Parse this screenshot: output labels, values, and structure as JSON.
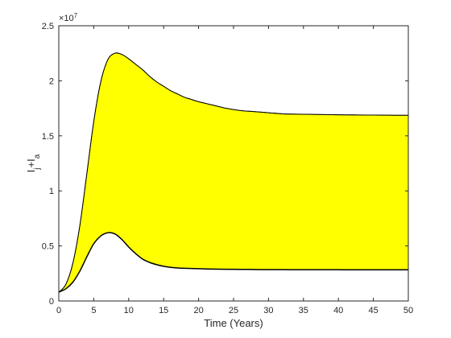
{
  "chart_data": {
    "type": "area",
    "title": "",
    "xlabel": "Time (Years)",
    "ylabel": {
      "main": "I",
      "sub1": "j",
      "plus": "+I",
      "sub2": "a"
    },
    "xlim": [
      0,
      50
    ],
    "ylim": [
      0,
      25000000
    ],
    "x_ticks": [
      0,
      5,
      10,
      15,
      20,
      25,
      30,
      35,
      40,
      45,
      50
    ],
    "y_ticks": [
      0,
      5000000,
      10000000,
      15000000,
      20000000,
      25000000
    ],
    "y_tick_labels": [
      "0",
      "0.5",
      "1",
      "1.5",
      "2",
      "2.5"
    ],
    "y_exponent": {
      "base": "×10",
      "power": "7"
    },
    "grid": false,
    "legend": "none",
    "fill_color": "#ffff00",
    "line_color": "#000000",
    "series": [
      {
        "role": "upper",
        "x": [
          0,
          1,
          2,
          3,
          4,
          5,
          6,
          7,
          8,
          9,
          10,
          11,
          12,
          13,
          14,
          15,
          16,
          17,
          18,
          19,
          20,
          22,
          24,
          26,
          28,
          30,
          32,
          34,
          36,
          38,
          40,
          42,
          44,
          46,
          48,
          50
        ],
        "values": [
          800000,
          1500000,
          3400000,
          6800000,
          11500000,
          16300000,
          19900000,
          21900000,
          22500000,
          22400000,
          22000000,
          21500000,
          21000000,
          20400000,
          19900000,
          19500000,
          19100000,
          18800000,
          18500000,
          18300000,
          18100000,
          17800000,
          17500000,
          17300000,
          17200000,
          17100000,
          17000000,
          16970000,
          16950000,
          16930000,
          16910000,
          16900000,
          16890000,
          16880000,
          16870000,
          16870000
        ]
      },
      {
        "role": "lower",
        "x": [
          0,
          1,
          2,
          3,
          4,
          5,
          6,
          7,
          8,
          9,
          10,
          11,
          12,
          13,
          14,
          15,
          16,
          17,
          18,
          19,
          20,
          22,
          24,
          26,
          28,
          30,
          32,
          34,
          36,
          38,
          40,
          42,
          44,
          46,
          48,
          50
        ],
        "values": [
          800000,
          1100000,
          1700000,
          2700000,
          4000000,
          5200000,
          5900000,
          6200000,
          6100000,
          5600000,
          4900000,
          4300000,
          3800000,
          3500000,
          3300000,
          3150000,
          3050000,
          3000000,
          2970000,
          2950000,
          2930000,
          2900000,
          2880000,
          2870000,
          2860000,
          2850000,
          2850000,
          2840000,
          2840000,
          2840000,
          2840000,
          2830000,
          2830000,
          2830000,
          2830000,
          2830000
        ]
      }
    ]
  }
}
